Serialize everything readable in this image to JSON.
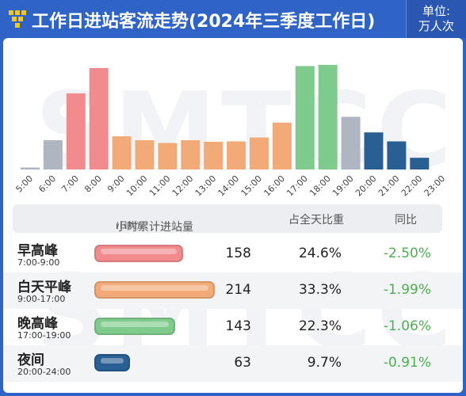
{
  "header": {
    "title": "工作日进站客流走势(2024年三季度工作日)",
    "unit_line1": "单位:",
    "unit_line2": "万人次"
  },
  "watermark": "SMTCC",
  "colors": {
    "peak_morning": "#f28b8e",
    "daytime": "#f2aa78",
    "peak_evening": "#7fcb8d",
    "offpeak_gray": "#aeb6c2",
    "night": "#2a5f94",
    "yoy_text": "#4caf50"
  },
  "chart_data": {
    "type": "bar",
    "categories": [
      "5:00",
      "6:00",
      "7:00",
      "8:00",
      "9:00",
      "10:00",
      "11:00",
      "12:00",
      "13:00",
      "14:00",
      "15:00",
      "16:00",
      "17:00",
      "18:00",
      "19:00",
      "20:00",
      "21:00",
      "22:00",
      "23:00"
    ],
    "values": [
      0.5,
      7.5,
      19.5,
      26,
      8.5,
      7.5,
      6.8,
      7.5,
      7.1,
      7.2,
      8.2,
      12,
      26.5,
      26.8,
      13.5,
      9.5,
      7.2,
      3.0,
      0
    ],
    "colors": [
      "#aeb6c2",
      "#aeb6c2",
      "#f28b8e",
      "#f28b8e",
      "#f2aa78",
      "#f2aa78",
      "#f2aa78",
      "#f2aa78",
      "#f2aa78",
      "#f2aa78",
      "#f2aa78",
      "#f2aa78",
      "#7fcb8d",
      "#7fcb8d",
      "#aeb6c2",
      "#2a5f94",
      "#2a5f94",
      "#2a5f94",
      "#2a5f94"
    ],
    "ylim": [
      0,
      28
    ]
  },
  "table": {
    "col_hourly": "小时累计进站量",
    "col_hourly_note": "(日均)",
    "col_share": "占全天比重",
    "col_yoy": "同比",
    "rows": [
      {
        "name": "早高峰",
        "time": "7:00-9:00",
        "value": "158",
        "value_num": 158,
        "share": "24.6%",
        "yoy": "-2.50%",
        "color": "#f28b8e"
      },
      {
        "name": "白天平峰",
        "time": "9:00-17:00",
        "value": "214",
        "value_num": 214,
        "share": "33.3%",
        "yoy": "-1.99%",
        "color": "#f2aa78"
      },
      {
        "name": "晚高峰",
        "time": "17:00-19:00",
        "value": "143",
        "value_num": 143,
        "share": "22.3%",
        "yoy": "-1.06%",
        "color": "#7fcb8d"
      },
      {
        "name": "夜间",
        "time": "20:00-24:00",
        "value": "63",
        "value_num": 63,
        "share": "9.7%",
        "yoy": "-0.91%",
        "color": "#2a5f94"
      }
    ]
  }
}
